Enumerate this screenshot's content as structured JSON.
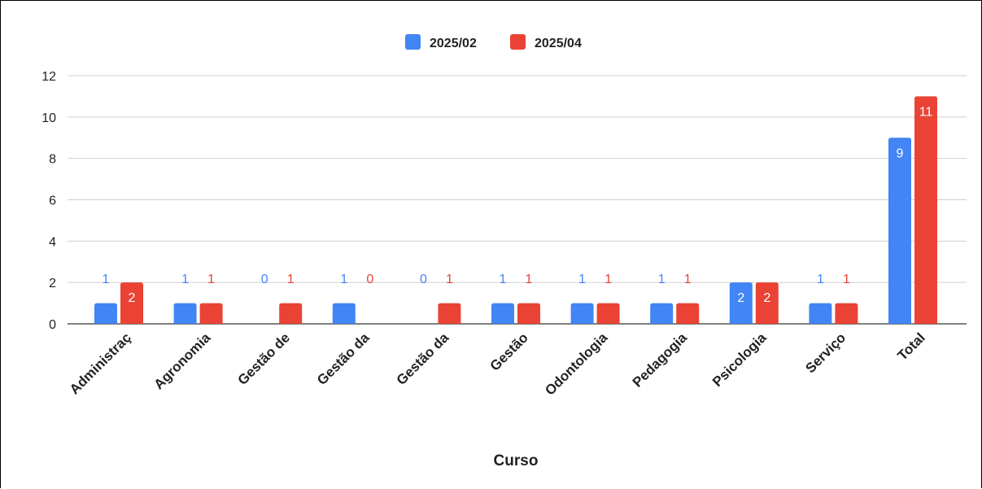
{
  "chart_data": {
    "type": "bar",
    "xlabel": "Curso",
    "ylabel": "",
    "ylim": [
      0,
      12
    ],
    "yticks": [
      0,
      2,
      4,
      6,
      8,
      10,
      12
    ],
    "grid": true,
    "legend_position": "top",
    "categories": [
      "Administraç",
      "Agronomia",
      "Gestão de",
      "Gestão da",
      "Gestão da",
      "Gestão",
      "Odontologia",
      "Pedagogia",
      "Psicologia",
      "Serviço",
      "Total"
    ],
    "series": [
      {
        "name": "2025/02",
        "color": "#4285f4",
        "values": [
          1,
          1,
          0,
          1,
          0,
          1,
          1,
          1,
          2,
          1,
          9
        ]
      },
      {
        "name": "2025/04",
        "color": "#ea4335",
        "values": [
          2,
          1,
          1,
          0,
          1,
          1,
          1,
          1,
          2,
          1,
          11
        ]
      }
    ]
  }
}
